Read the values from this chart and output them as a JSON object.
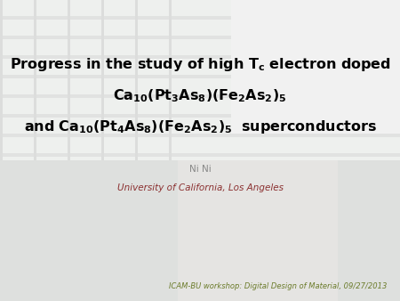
{
  "title_line1": "Progress in the study of high $\\mathbf{T_c}$ electron doped",
  "title_line2": "$\\mathbf{Ca_{10}(Pt_{3}As_{8})(Fe_{2}As_{2})_5}$",
  "title_line3": "$\\mathbf{and\\ Ca_{10}(Pt_{4}As_{8})(Fe_{2}As_{2})_5\\ \\ superconductors}$",
  "author": "Ni Ni",
  "institution": "University of California, Los Angeles",
  "footer": "ICAM-BU workshop: Digital Design of Material, 09/27/2013",
  "title_color": "#000000",
  "author_color": "#888888",
  "institution_color": "#8B3030",
  "footer_color": "#6B7B2A",
  "title_fontsize": 11.5,
  "author_fontsize": 7.5,
  "institution_fontsize": 7.5,
  "footer_fontsize": 6.0,
  "bg_base": "#c8cac8",
  "bg_light": "#e8eae8"
}
